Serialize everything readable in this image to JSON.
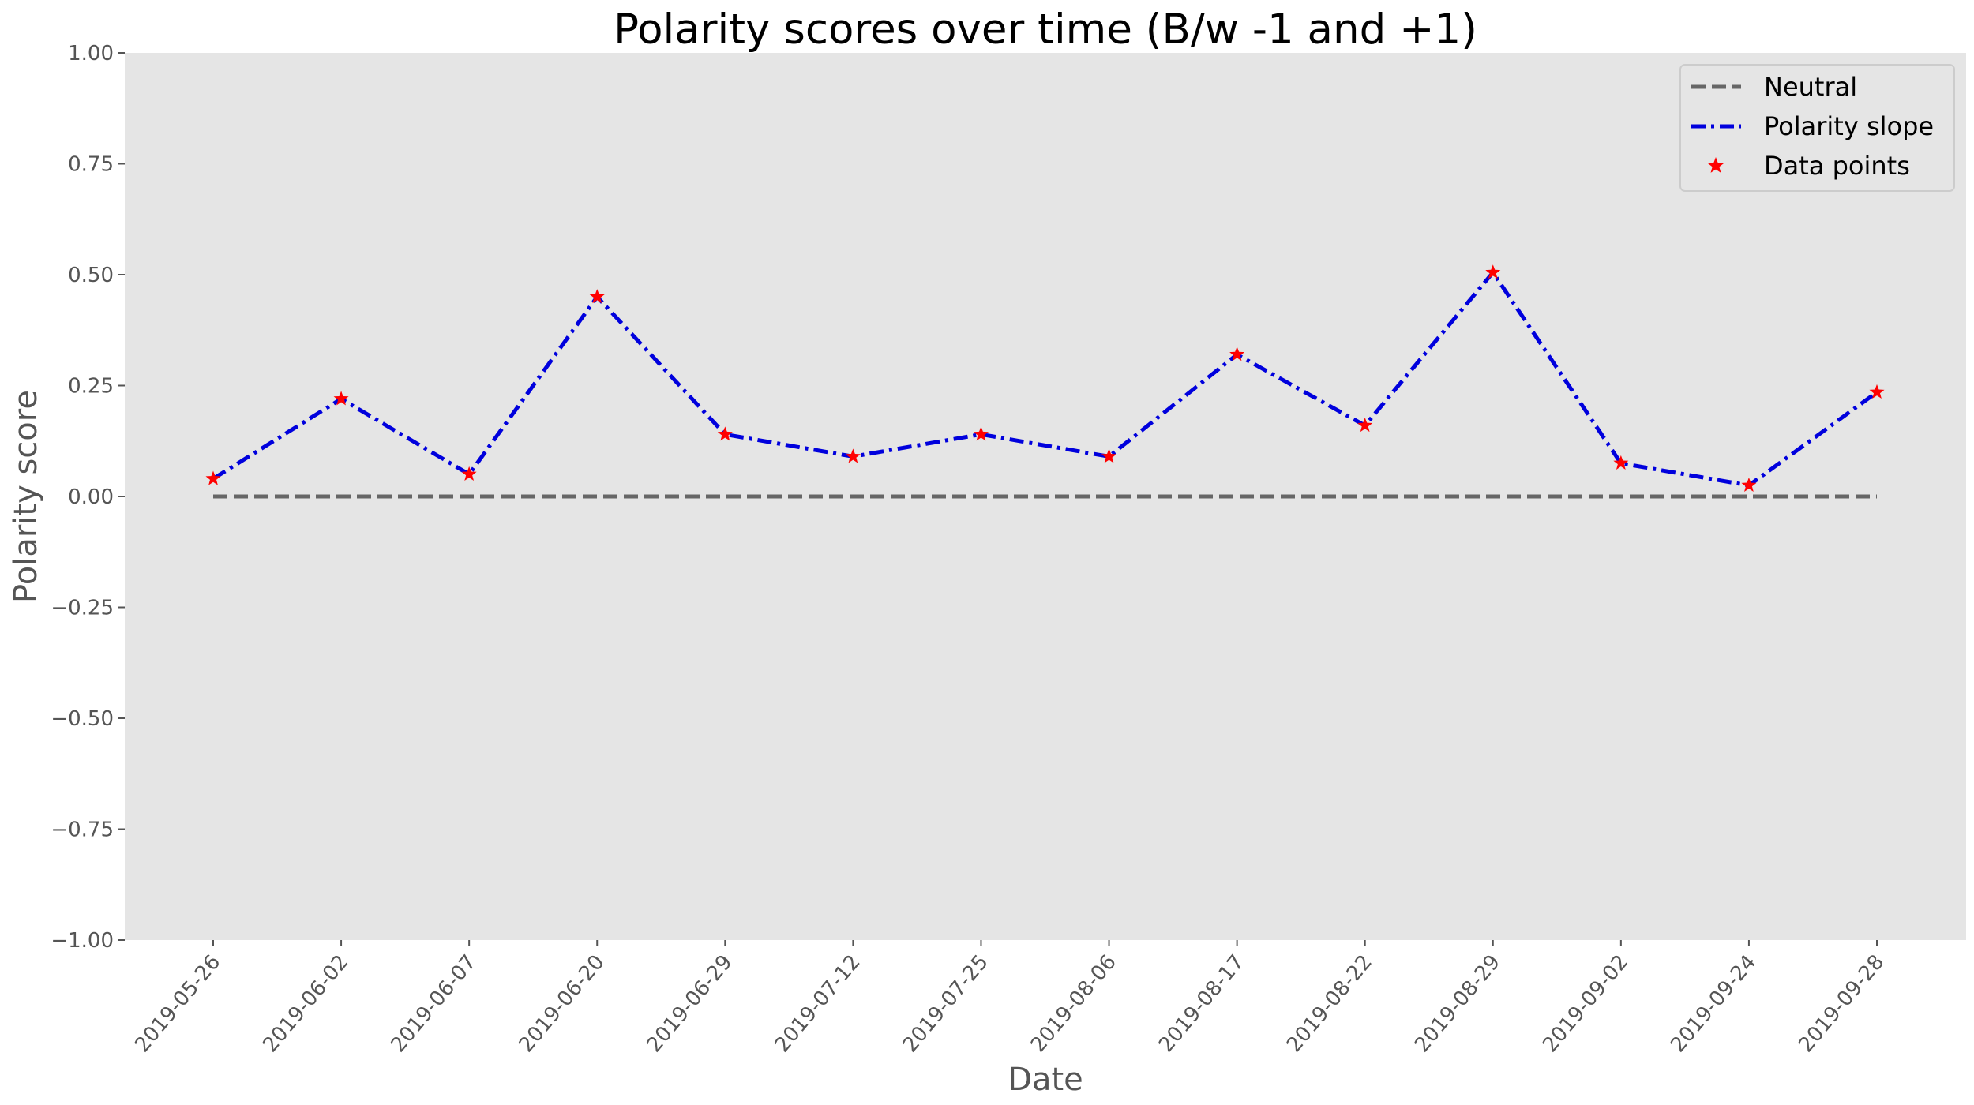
{
  "chart_data": {
    "type": "line",
    "title": "Polarity scores over time (B/w -1 and +1)",
    "xlabel": "Date",
    "ylabel": "Polarity score",
    "ylim": [
      -1,
      1
    ],
    "yticks": [
      1.0,
      0.75,
      0.5,
      0.25,
      0.0,
      -0.25,
      -0.5,
      -0.75,
      -1.0
    ],
    "ytick_labels": [
      "1.00",
      "0.75",
      "0.50",
      "0.25",
      "0.00",
      "−0.25",
      "−0.50",
      "−0.75",
      "−1.00"
    ],
    "categories": [
      "2019-05-26",
      "2019-06-02",
      "2019-06-07",
      "2019-06-20",
      "2019-06-29",
      "2019-07-12",
      "2019-07-25",
      "2019-08-06",
      "2019-08-17",
      "2019-08-22",
      "2019-08-29",
      "2019-09-02",
      "2019-09-24",
      "2019-09-28"
    ],
    "grid": false,
    "legend_position": "top-right",
    "background_color": "#e5e5e5",
    "series": [
      {
        "name": "Neutral",
        "style": "dashed",
        "color": "#666666",
        "values": [
          0,
          0,
          0,
          0,
          0,
          0,
          0,
          0,
          0,
          0,
          0,
          0,
          0,
          0
        ]
      },
      {
        "name": "Polarity slope",
        "style": "dashdot",
        "color": "#0000dd",
        "values": [
          0.04,
          0.22,
          0.05,
          0.45,
          0.14,
          0.09,
          0.14,
          0.09,
          0.32,
          0.16,
          0.505,
          0.075,
          0.025,
          0.235
        ]
      },
      {
        "name": "Data points",
        "style": "star-markers",
        "color": "#ff0000",
        "values": [
          0.04,
          0.22,
          0.05,
          0.45,
          0.14,
          0.09,
          0.14,
          0.09,
          0.32,
          0.16,
          0.505,
          0.075,
          0.025,
          0.235
        ]
      }
    ]
  }
}
